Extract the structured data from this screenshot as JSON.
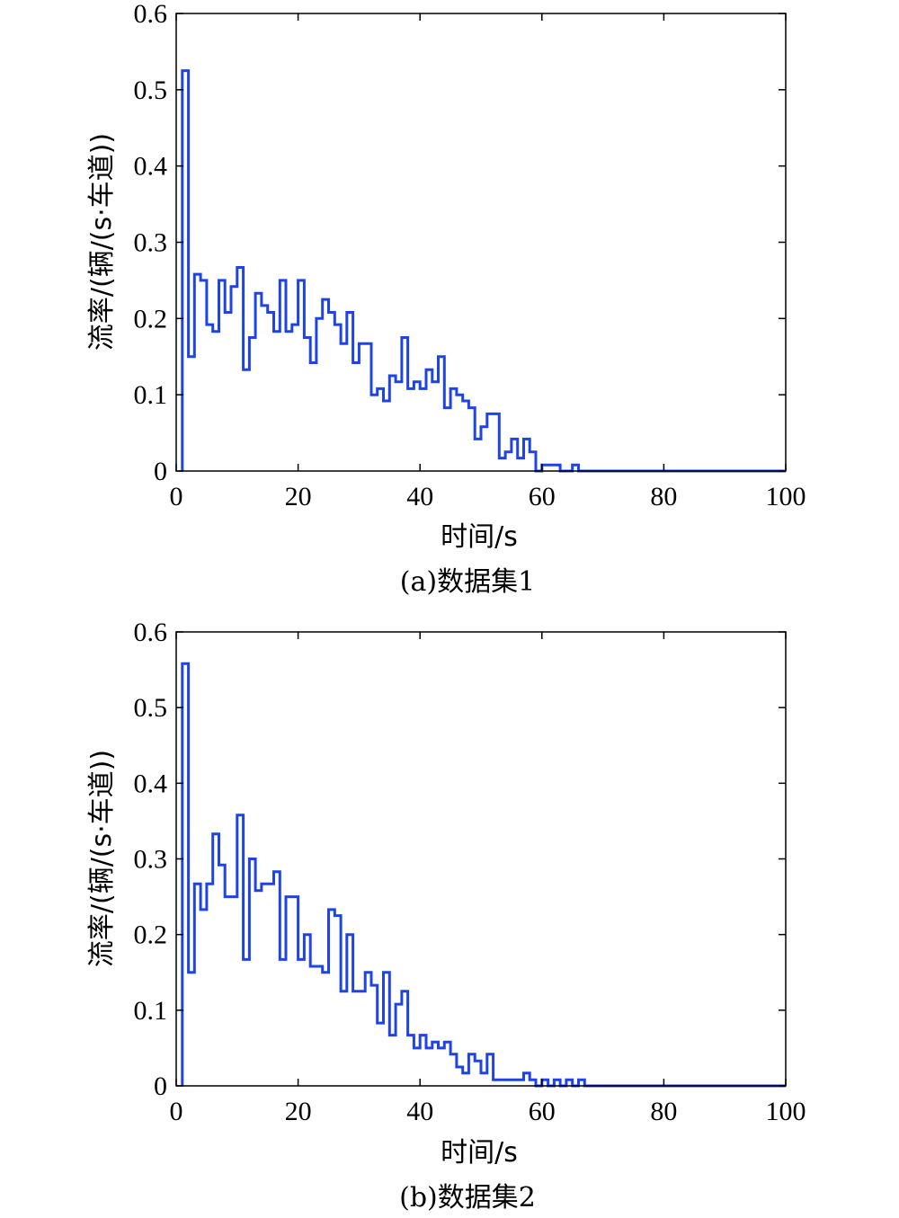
{
  "chart_data": [
    {
      "type": "line",
      "step": true,
      "caption": "(a)数据集1",
      "xlabel": "时间/s",
      "ylabel": "流率/(辆/(s·车道))",
      "xlim": [
        0,
        100
      ],
      "ylim": [
        0,
        0.6
      ],
      "xticks": [
        "0",
        "20",
        "40",
        "60",
        "80",
        "100"
      ],
      "yticks": [
        "0",
        "0.1",
        "0.2",
        "0.3",
        "0.4",
        "0.5",
        "0.6"
      ],
      "grid": false,
      "color": "#1f44e6",
      "x": [
        1,
        2,
        3,
        4,
        5,
        6,
        7,
        8,
        9,
        10,
        11,
        12,
        13,
        14,
        15,
        16,
        17,
        18,
        19,
        20,
        21,
        22,
        23,
        24,
        25,
        26,
        27,
        28,
        29,
        30,
        31,
        32,
        33,
        34,
        35,
        36,
        37,
        38,
        39,
        40,
        41,
        42,
        43,
        44,
        45,
        46,
        47,
        48,
        49,
        50,
        51,
        52,
        53,
        54,
        55,
        56,
        57,
        58,
        59,
        60,
        61,
        62,
        63,
        64,
        65,
        66,
        67,
        68,
        69,
        70,
        71,
        72,
        73,
        74,
        75,
        76,
        77,
        78,
        79,
        80,
        81,
        82,
        83,
        84,
        85,
        86,
        87,
        88,
        89,
        90,
        91,
        92,
        93,
        94,
        95,
        96,
        97,
        98,
        99
      ],
      "values": [
        0.525,
        0.15,
        0.258,
        0.25,
        0.192,
        0.183,
        0.25,
        0.208,
        0.242,
        0.267,
        0.133,
        0.175,
        0.233,
        0.217,
        0.208,
        0.183,
        0.25,
        0.183,
        0.192,
        0.25,
        0.175,
        0.142,
        0.2,
        0.225,
        0.208,
        0.192,
        0.167,
        0.208,
        0.142,
        0.167,
        0.167,
        0.1,
        0.108,
        0.092,
        0.125,
        0.117,
        0.175,
        0.108,
        0.117,
        0.108,
        0.133,
        0.117,
        0.15,
        0.083,
        0.108,
        0.1,
        0.092,
        0.083,
        0.042,
        0.058,
        0.075,
        0.075,
        0.017,
        0.025,
        0.042,
        0.017,
        0.042,
        0.025,
        0.0,
        0.008,
        0.008,
        0.008,
        0.0,
        0.0,
        0.008,
        0.0,
        0,
        0,
        0,
        0,
        0,
        0,
        0,
        0,
        0,
        0,
        0,
        0,
        0,
        0,
        0,
        0,
        0,
        0,
        0,
        0,
        0,
        0,
        0,
        0,
        0,
        0,
        0,
        0,
        0,
        0,
        0,
        0,
        0
      ]
    },
    {
      "type": "line",
      "step": true,
      "caption": "(b)数据集2",
      "xlabel": "时间/s",
      "ylabel": "流率/(辆/(s·车道))",
      "xlim": [
        0,
        100
      ],
      "ylim": [
        0,
        0.6
      ],
      "xticks": [
        "0",
        "20",
        "40",
        "60",
        "80",
        "100"
      ],
      "yticks": [
        "0",
        "0.1",
        "0.2",
        "0.3",
        "0.4",
        "0.5",
        "0.6"
      ],
      "grid": false,
      "color": "#1f44e6",
      "x": [
        1,
        2,
        3,
        4,
        5,
        6,
        7,
        8,
        9,
        10,
        11,
        12,
        13,
        14,
        15,
        16,
        17,
        18,
        19,
        20,
        21,
        22,
        23,
        24,
        25,
        26,
        27,
        28,
        29,
        30,
        31,
        32,
        33,
        34,
        35,
        36,
        37,
        38,
        39,
        40,
        41,
        42,
        43,
        44,
        45,
        46,
        47,
        48,
        49,
        50,
        51,
        52,
        53,
        54,
        55,
        56,
        57,
        58,
        59,
        60,
        61,
        62,
        63,
        64,
        65,
        66,
        67,
        68,
        69,
        70,
        71,
        72,
        73,
        74,
        75,
        76,
        77,
        78,
        79,
        80,
        81,
        82,
        83,
        84,
        85,
        86,
        87,
        88,
        89,
        90,
        91,
        92,
        93,
        94,
        95,
        96,
        97,
        98,
        99
      ],
      "values": [
        0.558,
        0.15,
        0.267,
        0.233,
        0.267,
        0.333,
        0.292,
        0.25,
        0.25,
        0.358,
        0.167,
        0.3,
        0.258,
        0.267,
        0.267,
        0.283,
        0.167,
        0.25,
        0.25,
        0.167,
        0.2,
        0.158,
        0.158,
        0.15,
        0.233,
        0.225,
        0.125,
        0.2,
        0.125,
        0.125,
        0.15,
        0.133,
        0.083,
        0.15,
        0.067,
        0.108,
        0.125,
        0.067,
        0.05,
        0.067,
        0.05,
        0.058,
        0.05,
        0.058,
        0.042,
        0.025,
        0.017,
        0.042,
        0.033,
        0.017,
        0.042,
        0.008,
        0.008,
        0.008,
        0.008,
        0.008,
        0.017,
        0.008,
        0.0,
        0.008,
        0.0,
        0.008,
        0.0,
        0.008,
        0.0,
        0.008,
        0,
        0,
        0,
        0,
        0,
        0,
        0,
        0,
        0,
        0,
        0,
        0,
        0,
        0,
        0,
        0,
        0,
        0,
        0,
        0,
        0,
        0,
        0,
        0,
        0,
        0,
        0,
        0,
        0,
        0,
        0,
        0,
        0
      ]
    }
  ]
}
